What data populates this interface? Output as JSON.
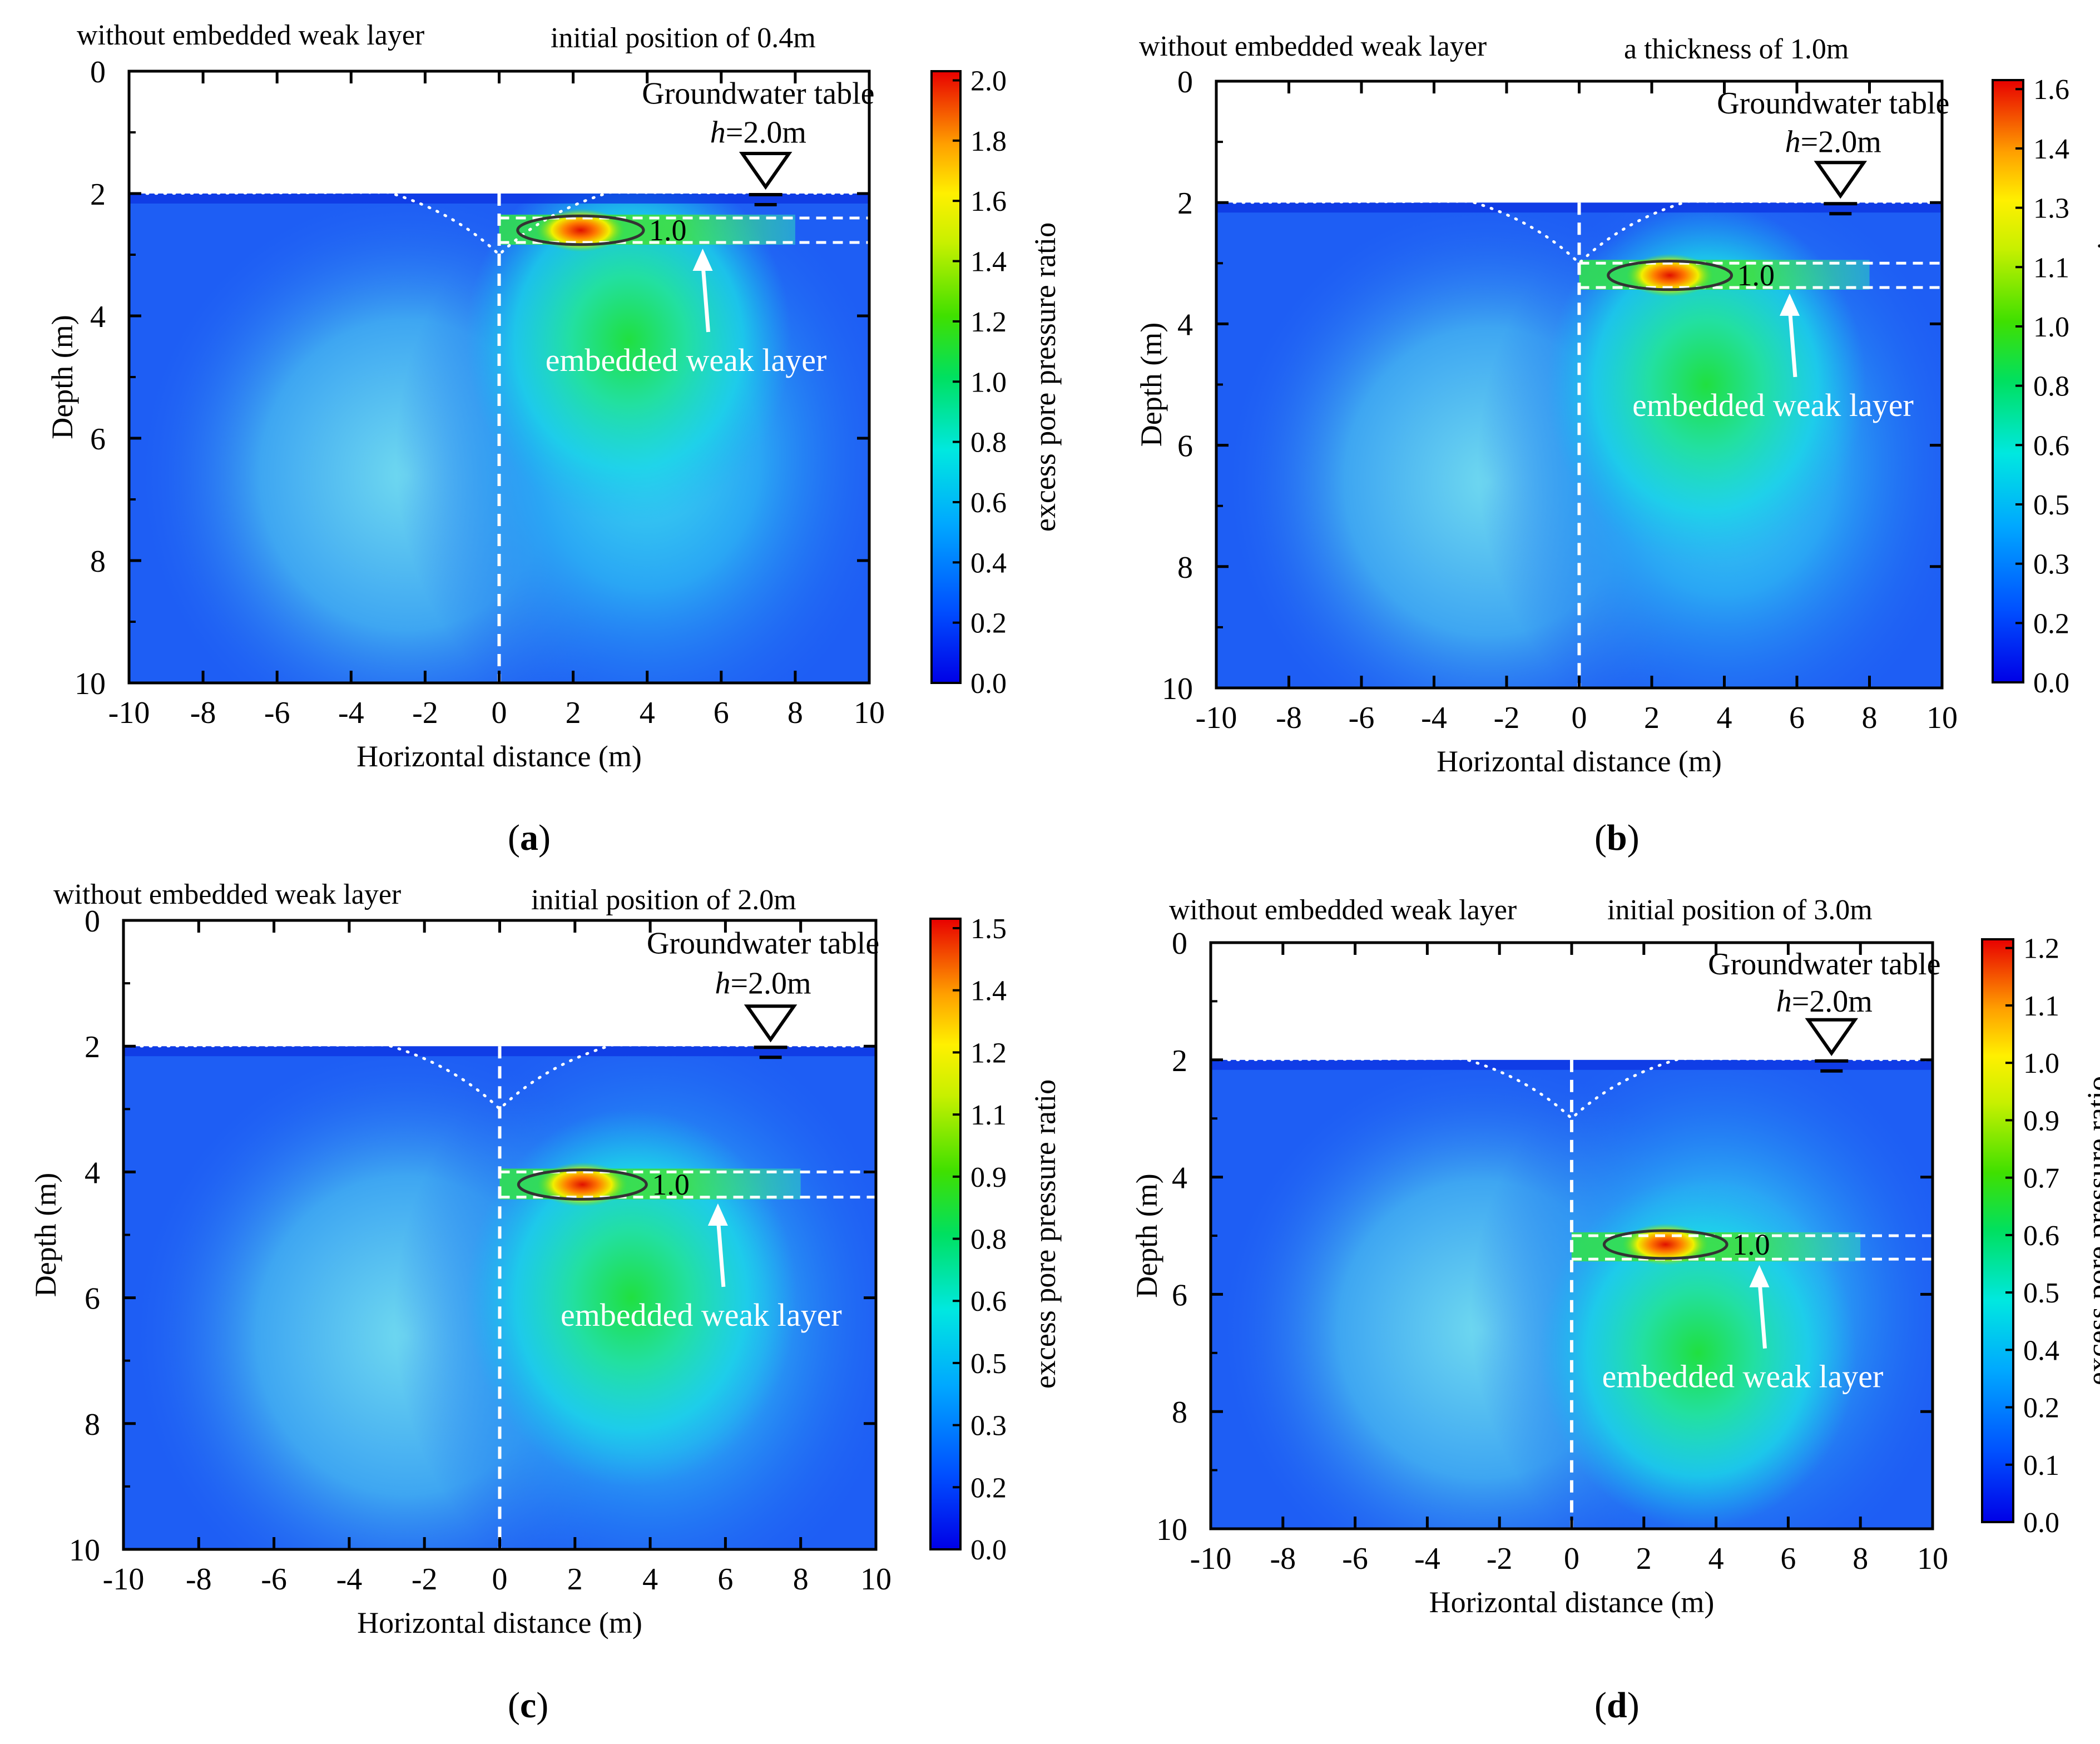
{
  "figure": {
    "common": {
      "xlabel": "Horizontal distance  (m)",
      "ylabel": "Depth (m)",
      "colorbar_label": "excess pore pressure ratio",
      "left_note": "without embedded weak layer",
      "groundwater_label": "Groundwater table",
      "h_italic": "h",
      "h_value": "=2.0m",
      "weak_layer_label": "embedded weak layer",
      "contour_label": "1.0"
    }
  },
  "chart_data": [
    {
      "type": "heatmap",
      "panel_label": "(a)",
      "title_right": "initial position of 0.4m",
      "x_range": [
        -10,
        10
      ],
      "y_range": [
        0,
        10
      ],
      "x_ticks": [
        -10,
        -8,
        -6,
        -4,
        -2,
        0,
        2,
        4,
        6,
        8,
        10
      ],
      "y_ticks": [
        0,
        2,
        4,
        6,
        8,
        10
      ],
      "colorbar_range": [
        0.0,
        2.05
      ],
      "colorbar_ticks": [
        "0.0",
        "0.2",
        "0.4",
        "0.6",
        "0.8",
        "1.0",
        "1.2",
        "1.4",
        "1.6",
        "1.8",
        "2.0"
      ],
      "ground_surface_depth": 2.0,
      "groundwater_depth": 2.0,
      "weak_layer": {
        "top_depth": 2.4,
        "bottom_depth": 2.8,
        "x_start": 0,
        "x_end": 10
      },
      "peak": {
        "x": 2.2,
        "depth": 2.6
      },
      "arrow_target": {
        "x": 5.5,
        "depth": 2.9
      }
    },
    {
      "type": "heatmap",
      "panel_label": "(b)",
      "title_right": "a thickness of 1.0m",
      "x_range": [
        -10,
        10
      ],
      "y_range": [
        0,
        10
      ],
      "x_ticks": [
        -10,
        -8,
        -6,
        -4,
        -2,
        0,
        2,
        4,
        6,
        8,
        10
      ],
      "y_ticks": [
        0,
        2,
        4,
        6,
        8,
        10
      ],
      "colorbar_range": [
        0.0,
        1.65
      ],
      "colorbar_ticks": [
        "0.0",
        "0.2",
        "0.3",
        "0.5",
        "0.6",
        "0.8",
        "1.0",
        "1.1",
        "1.3",
        "1.4",
        "1.6"
      ],
      "ground_surface_depth": 2.0,
      "groundwater_depth": 2.0,
      "weak_layer": {
        "top_depth": 3.0,
        "bottom_depth": 3.4,
        "x_start": 0,
        "x_end": 10
      },
      "peak": {
        "x": 2.5,
        "depth": 3.2
      },
      "arrow_target": {
        "x": 5.8,
        "depth": 3.5
      }
    },
    {
      "type": "heatmap",
      "panel_label": "(c)",
      "title_right": "initial position of 2.0m",
      "x_range": [
        -10,
        10
      ],
      "y_range": [
        0,
        10
      ],
      "x_ticks": [
        -10,
        -8,
        -6,
        -4,
        -2,
        0,
        2,
        4,
        6,
        8,
        10
      ],
      "y_ticks": [
        0,
        2,
        4,
        6,
        8,
        10
      ],
      "colorbar_range": [
        0.0,
        1.52
      ],
      "colorbar_ticks": [
        "0.0",
        "0.2",
        "0.3",
        "0.5",
        "0.6",
        "0.8",
        "0.9",
        "1.1",
        "1.2",
        "1.4",
        "1.5"
      ],
      "ground_surface_depth": 2.0,
      "groundwater_depth": 2.0,
      "weak_layer": {
        "top_depth": 4.0,
        "bottom_depth": 4.4,
        "x_start": 0,
        "x_end": 10
      },
      "peak": {
        "x": 2.2,
        "depth": 4.2
      },
      "arrow_target": {
        "x": 5.8,
        "depth": 4.5
      }
    },
    {
      "type": "heatmap",
      "panel_label": "(d)",
      "title_right": "initial position of 3.0m",
      "x_range": [
        -10,
        10
      ],
      "y_range": [
        0,
        10
      ],
      "x_ticks": [
        -10,
        -8,
        -6,
        -4,
        -2,
        0,
        2,
        4,
        6,
        8,
        10
      ],
      "y_ticks": [
        0,
        2,
        4,
        6,
        8,
        10
      ],
      "colorbar_range": [
        0.0,
        1.22
      ],
      "colorbar_ticks": [
        "0.0",
        "0.1",
        "0.2",
        "0.4",
        "0.5",
        "0.6",
        "0.7",
        "0.9",
        "1.0",
        "1.1",
        "1.2"
      ],
      "ground_surface_depth": 2.0,
      "groundwater_depth": 2.0,
      "weak_layer": {
        "top_depth": 5.0,
        "bottom_depth": 5.4,
        "x_start": 0,
        "x_end": 10
      },
      "peak": {
        "x": 2.6,
        "depth": 5.15
      },
      "arrow_target": {
        "x": 5.2,
        "depth": 5.5
      }
    }
  ]
}
